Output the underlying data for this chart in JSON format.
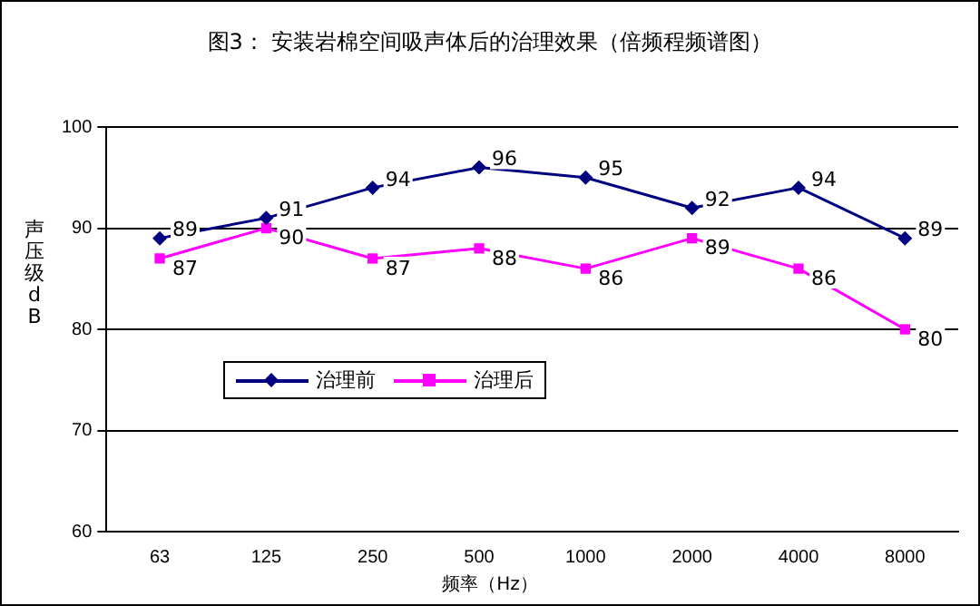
{
  "chart_data": {
    "type": "line",
    "title": "图3： 安装岩棉空间吸声体后的治理效果（倍频程频谱图）",
    "xlabel": "频率（Hz）",
    "ylabel": "声压级 dB",
    "categories": [
      "63",
      "125",
      "250",
      "500",
      "1000",
      "2000",
      "4000",
      "8000"
    ],
    "series": [
      {
        "name": "治理前",
        "color": "#000080",
        "marker": "diamond",
        "values": [
          89,
          91,
          94,
          96,
          95,
          92,
          94,
          89
        ]
      },
      {
        "name": "治理后",
        "color": "#ff00ff",
        "marker": "square",
        "values": [
          87,
          90,
          87,
          88,
          86,
          89,
          86,
          80
        ]
      }
    ],
    "ylim": [
      60,
      100
    ],
    "yticks": [
      60,
      70,
      80,
      90,
      100
    ],
    "grid": "y",
    "legend": "center",
    "data_labels": true
  }
}
